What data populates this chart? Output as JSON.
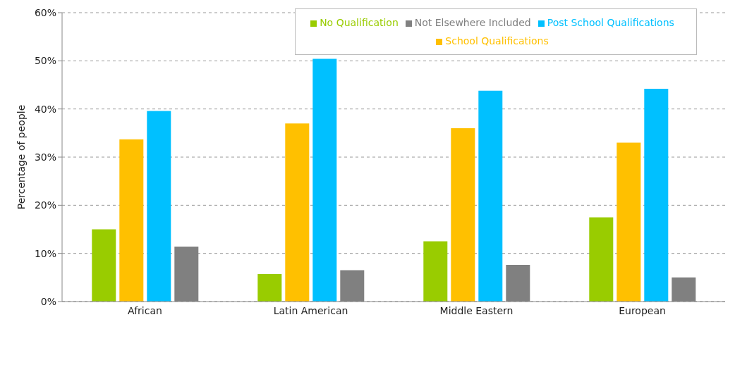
{
  "chart_data": {
    "type": "bar",
    "ylabel": "Percentage of people",
    "categories": [
      "African",
      "Latin American",
      "Middle Eastern",
      "European"
    ],
    "series": [
      {
        "name": "No Qualification",
        "color": "#99cc00",
        "values": [
          15,
          5.7,
          12.5,
          17.5
        ]
      },
      {
        "name": "School Qualifications",
        "color": "#ffc000",
        "values": [
          33.7,
          37,
          36,
          33
        ]
      },
      {
        "name": "Post School Qualifications",
        "color": "#00c0ff",
        "values": [
          39.6,
          50.4,
          43.8,
          44.2
        ]
      },
      {
        "name": "Not Elsewhere Included",
        "color": "#808080",
        "values": [
          11.4,
          6.5,
          7.6,
          5
        ]
      }
    ],
    "ylim": [
      0,
      60
    ],
    "yticks": [
      {
        "value": 0,
        "label": "0%"
      },
      {
        "value": 10,
        "label": "10%"
      },
      {
        "value": 20,
        "label": "20%"
      },
      {
        "value": 30,
        "label": "30%"
      },
      {
        "value": 40,
        "label": "40%"
      },
      {
        "value": 50,
        "label": "50%"
      },
      {
        "value": 60,
        "label": "60%"
      }
    ],
    "grid": "y",
    "legend": "top right"
  }
}
